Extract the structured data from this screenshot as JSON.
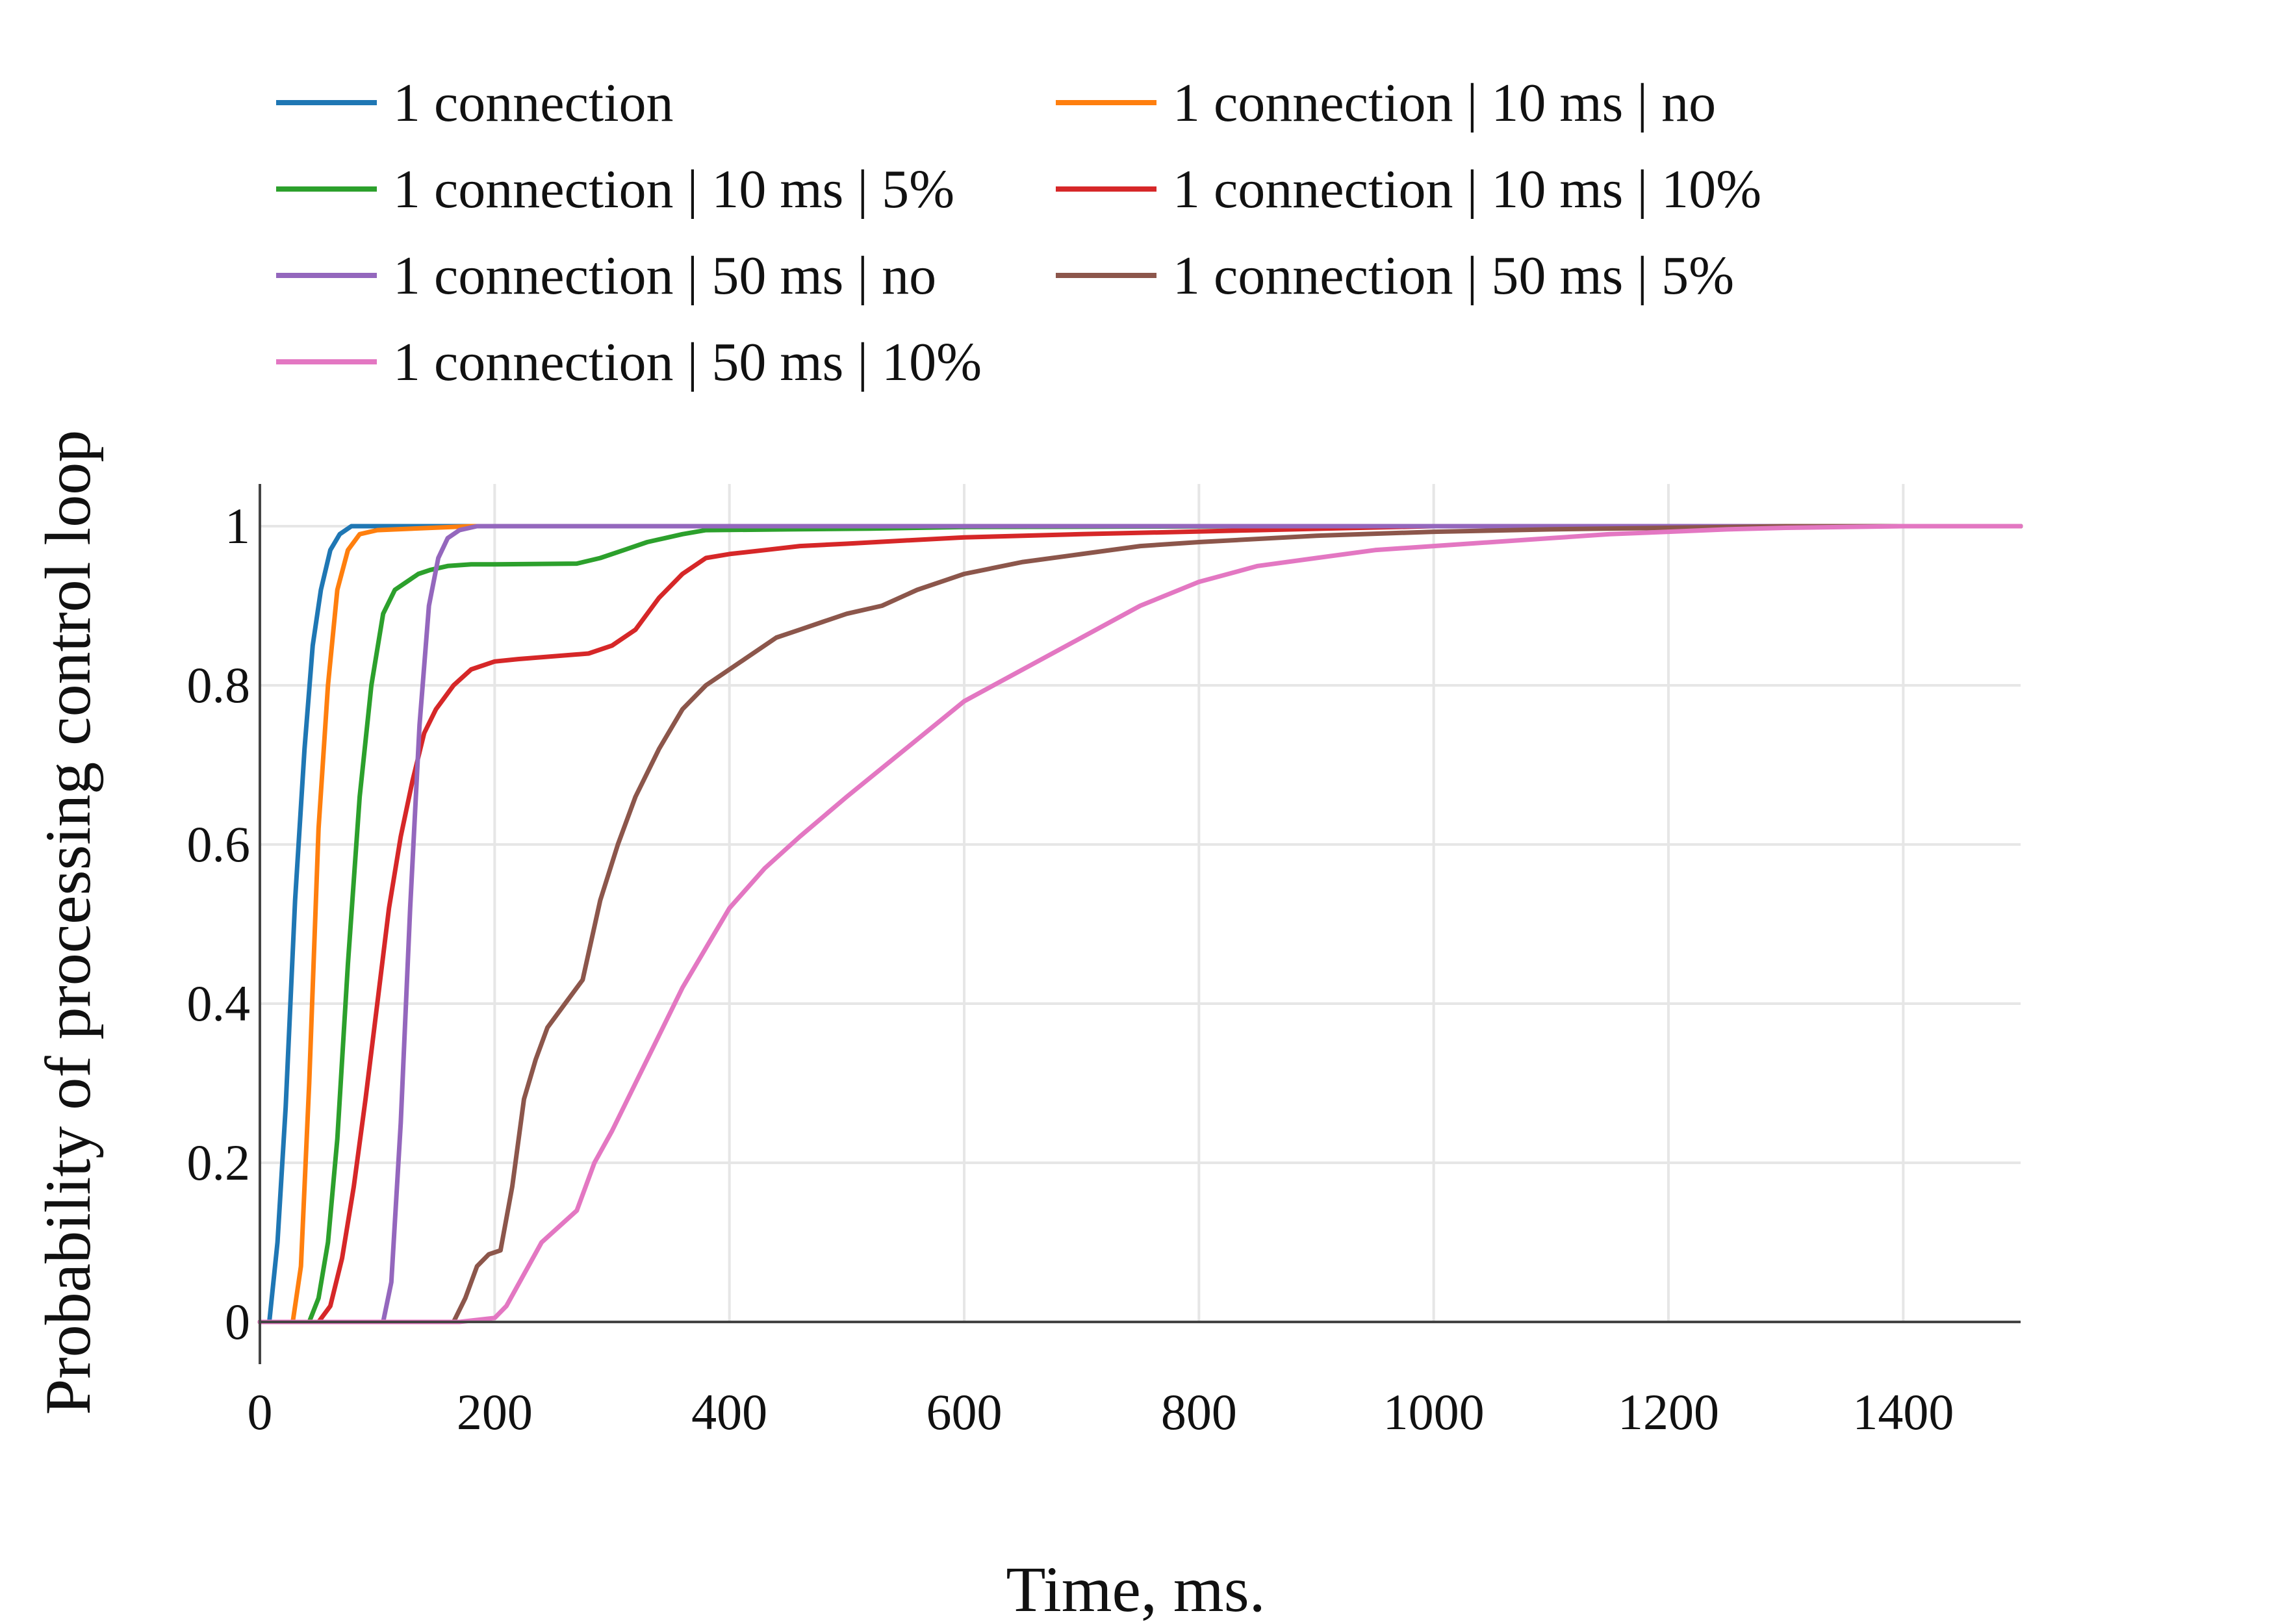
{
  "chart_data": {
    "type": "line",
    "title": "",
    "xlabel": "Time, ms.",
    "ylabel": "Probability of processing control loop",
    "xlim": [
      0,
      1500
    ],
    "ylim": [
      0,
      1
    ],
    "grid": true,
    "legend_position": "top",
    "x_ticks": [
      {
        "value": 0,
        "label": "0"
      },
      {
        "value": 200,
        "label": "200"
      },
      {
        "value": 400,
        "label": "400"
      },
      {
        "value": 600,
        "label": "600"
      },
      {
        "value": 800,
        "label": "800"
      },
      {
        "value": 1000,
        "label": "1000"
      },
      {
        "value": 1200,
        "label": "1200"
      },
      {
        "value": 1400,
        "label": "1400"
      }
    ],
    "y_ticks": [
      {
        "value": 0,
        "label": "0"
      },
      {
        "value": 0.2,
        "label": "0.2"
      },
      {
        "value": 0.4,
        "label": "0.4"
      },
      {
        "value": 0.6,
        "label": "0.6"
      },
      {
        "value": 0.8,
        "label": "0.8"
      },
      {
        "value": 1,
        "label": "1"
      }
    ],
    "series": [
      {
        "name": "1 connection",
        "color": "#1f77b4",
        "x": [
          0,
          8,
          15,
          22,
          30,
          38,
          45,
          52,
          60,
          68,
          78,
          85,
          1500
        ],
        "y": [
          0,
          0,
          0.1,
          0.27,
          0.53,
          0.72,
          0.85,
          0.92,
          0.97,
          0.99,
          1.0,
          1.0,
          1.0
        ]
      },
      {
        "name": "1 connection | 10 ms | no",
        "color": "#ff7f0e",
        "x": [
          0,
          28,
          35,
          42,
          50,
          58,
          66,
          75,
          85,
          100,
          180,
          1500
        ],
        "y": [
          0,
          0,
          0.07,
          0.3,
          0.62,
          0.8,
          0.92,
          0.97,
          0.99,
          0.995,
          1.0,
          1.0
        ]
      },
      {
        "name": "1 connection | 10 ms | 5%",
        "color": "#2ca02c",
        "x": [
          0,
          42,
          50,
          58,
          66,
          75,
          85,
          95,
          105,
          115,
          125,
          135,
          145,
          160,
          180,
          200,
          270,
          290,
          310,
          330,
          345,
          360,
          380,
          450,
          520,
          600,
          900,
          1500
        ],
        "y": [
          0,
          0,
          0.03,
          0.1,
          0.23,
          0.45,
          0.66,
          0.8,
          0.89,
          0.92,
          0.93,
          0.94,
          0.945,
          0.95,
          0.952,
          0.952,
          0.953,
          0.96,
          0.97,
          0.98,
          0.985,
          0.99,
          0.995,
          0.996,
          0.997,
          0.999,
          1.0,
          1.0
        ]
      },
      {
        "name": "1 connection | 10 ms | 10%",
        "color": "#d62728",
        "x": [
          0,
          50,
          60,
          70,
          80,
          90,
          100,
          110,
          120,
          130,
          140,
          150,
          165,
          180,
          200,
          220,
          280,
          300,
          320,
          340,
          360,
          380,
          400,
          430,
          460,
          500,
          550,
          600,
          700,
          850,
          1000,
          1500
        ],
        "y": [
          0,
          0,
          0.02,
          0.08,
          0.17,
          0.28,
          0.4,
          0.52,
          0.61,
          0.68,
          0.74,
          0.77,
          0.8,
          0.82,
          0.83,
          0.833,
          0.84,
          0.85,
          0.87,
          0.91,
          0.94,
          0.96,
          0.965,
          0.97,
          0.975,
          0.978,
          0.982,
          0.986,
          0.99,
          0.995,
          1.0,
          1.0
        ]
      },
      {
        "name": "1 connection | 50 ms | no",
        "color": "#9467bd",
        "x": [
          0,
          105,
          112,
          120,
          128,
          136,
          144,
          152,
          160,
          170,
          185,
          200,
          1500
        ],
        "y": [
          0,
          0,
          0.05,
          0.25,
          0.52,
          0.75,
          0.9,
          0.96,
          0.985,
          0.995,
          1.0,
          1.0,
          1.0
        ]
      },
      {
        "name": "1 connection | 50 ms | 5%",
        "color": "#8c564b",
        "x": [
          0,
          165,
          175,
          185,
          195,
          205,
          215,
          225,
          235,
          245,
          260,
          275,
          290,
          305,
          320,
          340,
          360,
          380,
          400,
          420,
          440,
          460,
          480,
          500,
          530,
          560,
          600,
          650,
          700,
          750,
          800,
          900,
          1000,
          1100,
          1200,
          1300,
          1500
        ],
        "y": [
          0,
          0,
          0.03,
          0.07,
          0.085,
          0.09,
          0.17,
          0.28,
          0.33,
          0.37,
          0.4,
          0.43,
          0.53,
          0.6,
          0.66,
          0.72,
          0.77,
          0.8,
          0.82,
          0.84,
          0.86,
          0.87,
          0.88,
          0.89,
          0.9,
          0.92,
          0.94,
          0.955,
          0.965,
          0.975,
          0.98,
          0.988,
          0.993,
          0.996,
          0.998,
          1.0,
          1.0
        ]
      },
      {
        "name": "1 connection | 50 ms | 10%",
        "color": "#e377c2",
        "x": [
          0,
          170,
          200,
          210,
          225,
          240,
          255,
          270,
          285,
          300,
          320,
          340,
          360,
          380,
          400,
          430,
          460,
          500,
          550,
          600,
          650,
          700,
          750,
          800,
          850,
          900,
          950,
          1000,
          1050,
          1100,
          1150,
          1200,
          1250,
          1300,
          1400,
          1500
        ],
        "y": [
          0,
          0,
          0.005,
          0.02,
          0.06,
          0.1,
          0.12,
          0.14,
          0.2,
          0.24,
          0.3,
          0.36,
          0.42,
          0.47,
          0.52,
          0.57,
          0.61,
          0.66,
          0.72,
          0.78,
          0.82,
          0.86,
          0.9,
          0.93,
          0.95,
          0.96,
          0.97,
          0.975,
          0.98,
          0.985,
          0.99,
          0.993,
          0.996,
          0.998,
          1.0,
          1.0
        ]
      }
    ]
  }
}
